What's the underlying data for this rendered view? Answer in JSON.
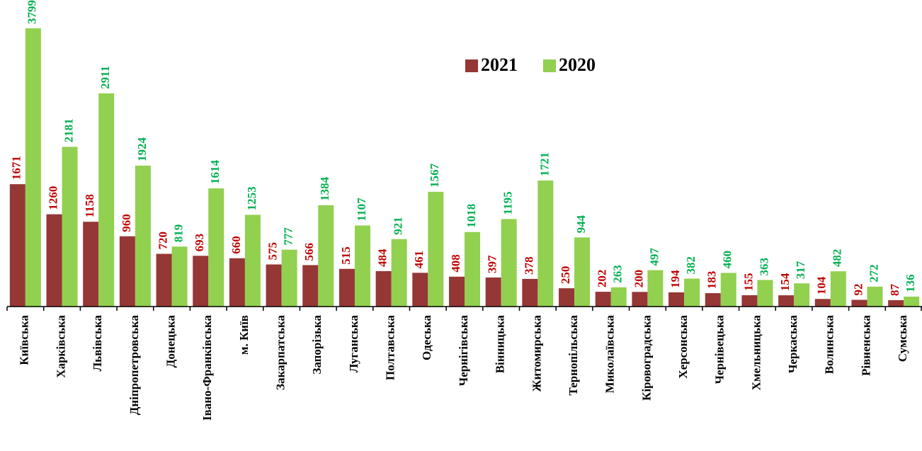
{
  "chart_data": {
    "type": "bar",
    "categories": [
      "Київська",
      "Харківська",
      "Львівська",
      "Дніпропетровська",
      "Донецька",
      "Івано-Франківська",
      "м. Київ",
      "Закарпатська",
      "Запорізька",
      "Луганська",
      "Полтавська",
      "Одеська",
      "Чернігівська",
      "Вінницька",
      "Житомирська",
      "Тернопільська",
      "Миколаївська",
      "Кіровоградська",
      "Херсонська",
      "Чернівецька",
      "Хмельницька",
      "Черкаська",
      "Волинська",
      "Рівненська",
      "Сумська"
    ],
    "series": [
      {
        "name": "2021",
        "color": "#953735",
        "label_color": "#c00000",
        "values": [
          1671,
          1260,
          1158,
          960,
          720,
          693,
          660,
          575,
          566,
          515,
          484,
          461,
          408,
          397,
          378,
          250,
          202,
          200,
          194,
          183,
          155,
          154,
          104,
          92,
          87
        ]
      },
      {
        "name": "2020",
        "color": "#92d050",
        "label_color": "#00b050",
        "values": [
          3799,
          2181,
          2911,
          1924,
          819,
          1614,
          1253,
          777,
          1384,
          1107,
          921,
          1567,
          1018,
          1195,
          1721,
          944,
          263,
          497,
          382,
          460,
          363,
          317,
          482,
          272,
          136
        ]
      }
    ]
  }
}
